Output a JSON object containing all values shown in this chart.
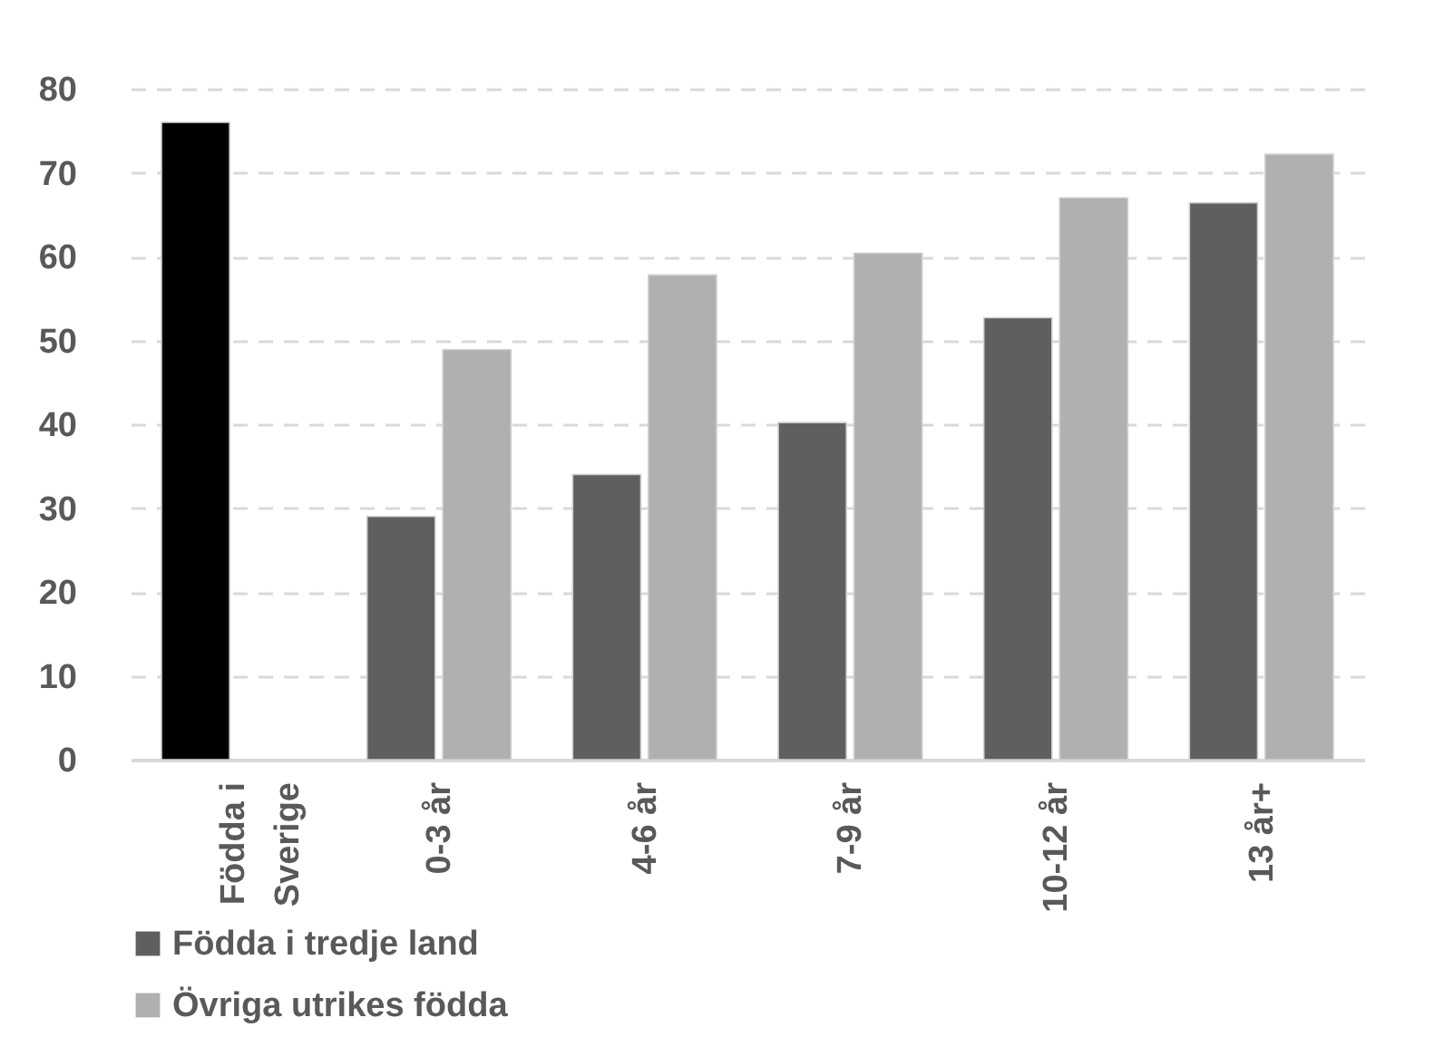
{
  "chart_data": {
    "type": "bar",
    "categories": [
      "Födda i Sverige",
      "0-3 år",
      "4-6 år",
      "7-9 år",
      "10-12 år",
      "13 år+"
    ],
    "series": [
      {
        "name": "Födda i tredje land",
        "color": "#5f5f5f",
        "colors": [
          "#000000",
          "#5f5f5f",
          "#5f5f5f",
          "#5f5f5f",
          "#5f5f5f",
          "#5f5f5f"
        ],
        "values": [
          76,
          29,
          34,
          40.2,
          52.7,
          66.4
        ]
      },
      {
        "name": "Övriga utrikes födda",
        "color": "#b0b0b0",
        "values": [
          null,
          48.9,
          57.8,
          60.4,
          67,
          72.2
        ]
      }
    ],
    "ylim": [
      0,
      80
    ],
    "yticks": [
      0,
      10,
      20,
      30,
      40,
      50,
      60,
      70,
      80
    ],
    "grid": "y",
    "legend": "bottom"
  }
}
